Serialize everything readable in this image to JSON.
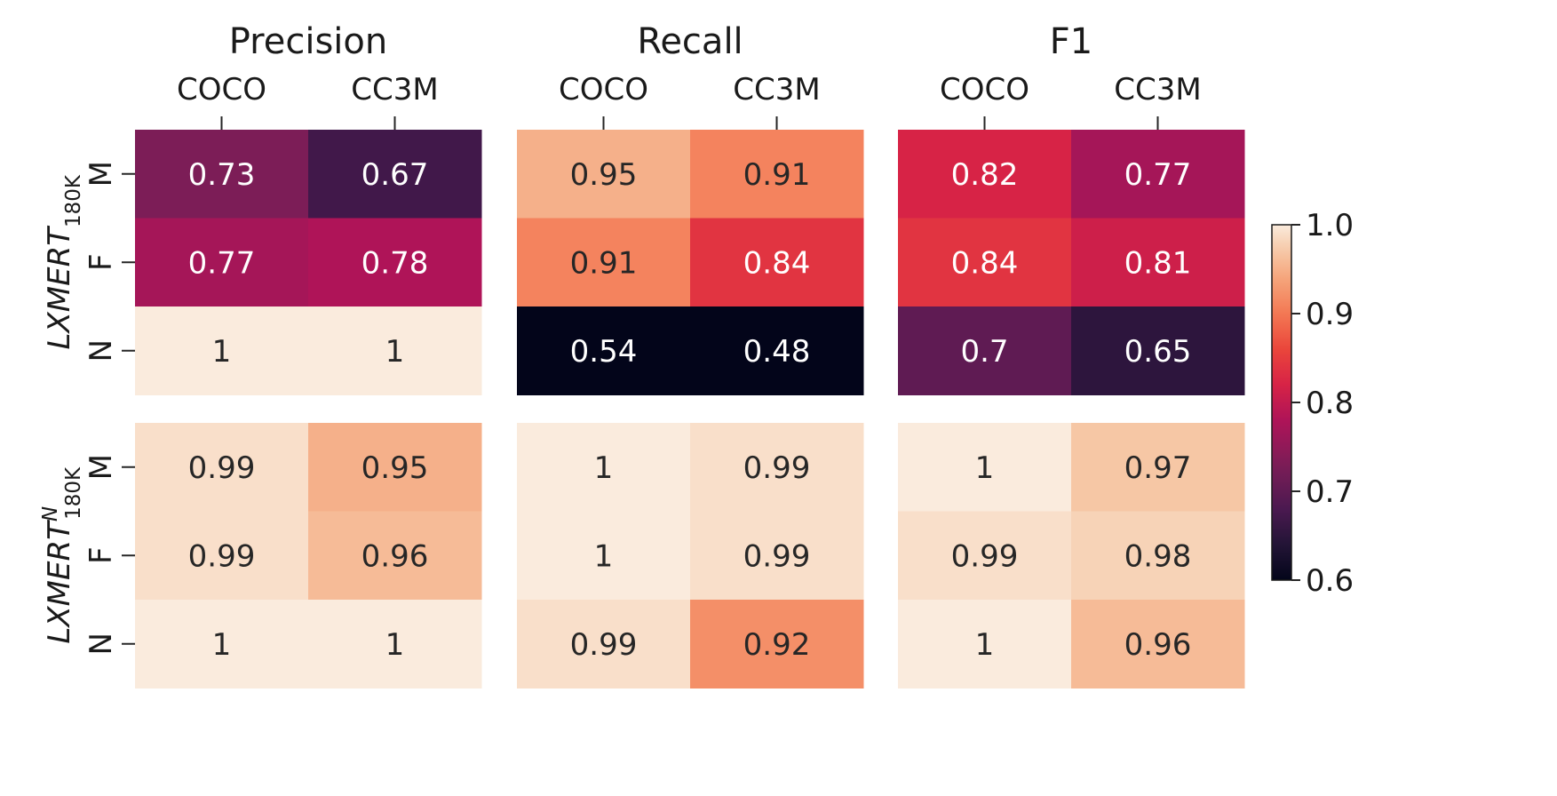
{
  "chart_data": {
    "type": "heatmap",
    "colormap": "rocket",
    "color_range": [
      0.6,
      1.0
    ],
    "colorbar": {
      "ticks": [
        0.6,
        0.7,
        0.8,
        0.9,
        1.0
      ],
      "tick_labels": [
        "0.6",
        "0.7",
        "0.8",
        "0.9",
        "1.0"
      ]
    },
    "columns": [
      "COCO",
      "CC3M"
    ],
    "rows": [
      "M",
      "F",
      "N"
    ],
    "panels": [
      {
        "title": "Precision",
        "model_rows": [
          {
            "values": [
              [
                0.73,
                0.67
              ],
              [
                0.77,
                0.78
              ],
              [
                1,
                1
              ]
            ],
            "labels": [
              [
                "0.73",
                "0.67"
              ],
              [
                "0.77",
                "0.78"
              ],
              [
                "1",
                "1"
              ]
            ]
          },
          {
            "values": [
              [
                0.99,
                0.95
              ],
              [
                0.99,
                0.96
              ],
              [
                1,
                1
              ]
            ],
            "labels": [
              [
                "0.99",
                "0.95"
              ],
              [
                "0.99",
                "0.96"
              ],
              [
                "1",
                "1"
              ]
            ]
          }
        ]
      },
      {
        "title": "Recall",
        "model_rows": [
          {
            "values": [
              [
                0.95,
                0.91
              ],
              [
                0.91,
                0.84
              ],
              [
                0.54,
                0.48
              ]
            ],
            "labels": [
              [
                "0.95",
                "0.91"
              ],
              [
                "0.91",
                "0.84"
              ],
              [
                "0.54",
                "0.48"
              ]
            ]
          },
          {
            "values": [
              [
                1,
                0.99
              ],
              [
                1,
                0.99
              ],
              [
                0.99,
                0.92
              ]
            ],
            "labels": [
              [
                "1",
                "0.99"
              ],
              [
                "1",
                "0.99"
              ],
              [
                "0.99",
                "0.92"
              ]
            ]
          }
        ]
      },
      {
        "title": "F1",
        "model_rows": [
          {
            "values": [
              [
                0.82,
                0.77
              ],
              [
                0.84,
                0.81
              ],
              [
                0.7,
                0.65
              ]
            ],
            "labels": [
              [
                "0.82",
                "0.77"
              ],
              [
                "0.84",
                "0.81"
              ],
              [
                "0.7",
                "0.65"
              ]
            ]
          },
          {
            "values": [
              [
                1,
                0.97
              ],
              [
                0.99,
                0.98
              ],
              [
                1,
                0.96
              ]
            ],
            "labels": [
              [
                "1",
                "0.97"
              ],
              [
                "0.99",
                "0.98"
              ],
              [
                "1",
                "0.96"
              ]
            ]
          }
        ]
      }
    ],
    "model_labels": [
      {
        "base": "LXMERT",
        "sub": "180K",
        "sup": ""
      },
      {
        "base": "LXMERT",
        "sub": "180K",
        "sup": "N"
      }
    ]
  }
}
